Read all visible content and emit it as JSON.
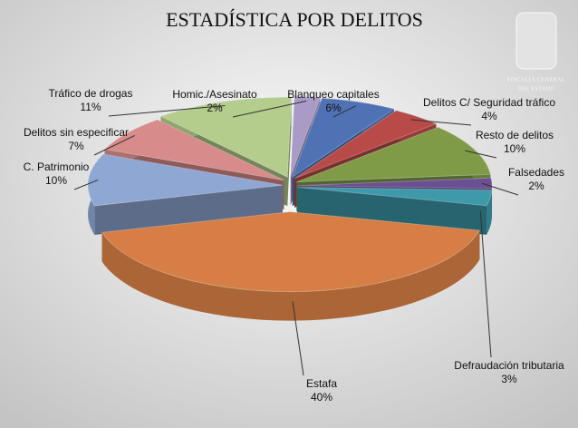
{
  "chart_data": {
    "type": "pie",
    "title": "ESTADÍSTICA POR DELITOS",
    "categories": [
      "Homic./Asesinato",
      "Blanqueo capitales",
      "Delitos C/ Seguridad tráfico",
      "Resto de delitos",
      "Falsedades",
      "Defraudación tributaria",
      "Estafa",
      "C. Patrimonio",
      "Delitos sin especificar",
      "Tráfico de drogas"
    ],
    "values": [
      2,
      6,
      4,
      10,
      2,
      3,
      40,
      10,
      7,
      11
    ],
    "value_labels": [
      "2%",
      "6%",
      "4%",
      "10%",
      "2%",
      "3%",
      "40%",
      "10%",
      "7%",
      "11%"
    ],
    "colors": [
      "#a99bc6",
      "#4f72b5",
      "#b84a47",
      "#7f9b48",
      "#6b4f93",
      "#3e9aab",
      "#d67e45",
      "#8fa7d3",
      "#d78c8b",
      "#b4cc8c"
    ]
  },
  "logo": {
    "line1": "FISCALÍA GENERAL",
    "line2": "DEL ESTADO"
  }
}
